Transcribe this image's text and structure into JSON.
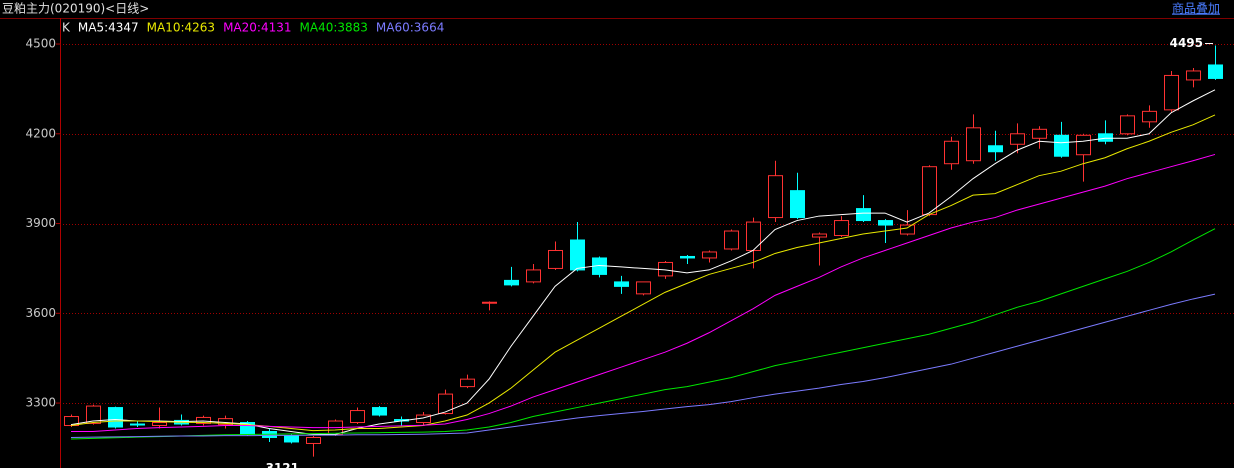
{
  "chart_data": {
    "type": "candlestick",
    "title": "豆粕主力(020190)<日线>",
    "link": "商品叠加",
    "ylim": [
      3083,
      4587
    ],
    "yticks": [
      3300,
      3600,
      3900,
      4200,
      4500
    ],
    "grid": true,
    "series": [
      {
        "name": "K",
        "up_color": "#ff3232",
        "down_color": "#00ffff",
        "open": [
          3225,
          3232,
          3285,
          3230,
          3225,
          3242,
          3232,
          3228,
          3235,
          3205,
          3190,
          3165,
          3195,
          3235,
          3285,
          3245,
          3235,
          3265,
          3355,
          3635,
          3710,
          3705,
          3750,
          3845,
          3785,
          3705,
          3665,
          3725,
          3790,
          3785,
          3815,
          3810,
          3920,
          4010,
          3855,
          3860,
          3950,
          3910,
          3865,
          3930,
          4100,
          4110,
          4160,
          4165,
          4185,
          4195,
          4130,
          4200,
          4200,
          4240,
          4280,
          4380,
          4430
        ],
        "high": [
          3262,
          3295,
          3288,
          3240,
          3285,
          3262,
          3258,
          3258,
          3240,
          3215,
          3195,
          3190,
          3245,
          3285,
          3290,
          3255,
          3270,
          3345,
          3395,
          3640,
          3755,
          3765,
          3840,
          3905,
          3790,
          3725,
          3705,
          3775,
          3795,
          3810,
          3880,
          3920,
          4110,
          4070,
          3870,
          3925,
          3995,
          3915,
          3945,
          4095,
          4190,
          4265,
          4210,
          4235,
          4225,
          4240,
          4200,
          4245,
          4265,
          4295,
          4410,
          4420,
          4495
        ],
        "low": [
          3220,
          3228,
          3215,
          3220,
          3215,
          3225,
          3225,
          3215,
          3190,
          3170,
          3165,
          3121,
          3190,
          3230,
          3255,
          3225,
          3225,
          3262,
          3350,
          3610,
          3690,
          3700,
          3745,
          3740,
          3720,
          3665,
          3660,
          3715,
          3765,
          3770,
          3810,
          3750,
          3905,
          3915,
          3760,
          3855,
          3905,
          3835,
          3860,
          3925,
          4080,
          4100,
          4110,
          4135,
          4150,
          4120,
          4040,
          4165,
          4195,
          4220,
          4270,
          4355,
          4380
        ],
        "close": [
          3255,
          3290,
          3220,
          3228,
          3235,
          3230,
          3252,
          3248,
          3195,
          3185,
          3170,
          3185,
          3240,
          3275,
          3260,
          3240,
          3260,
          3330,
          3380,
          3637,
          3695,
          3745,
          3810,
          3745,
          3730,
          3690,
          3705,
          3770,
          3785,
          3805,
          3875,
          3905,
          4060,
          3920,
          3865,
          3910,
          3910,
          3895,
          3895,
          4090,
          4175,
          4220,
          4140,
          4200,
          4215,
          4125,
          4195,
          4175,
          4260,
          4275,
          4395,
          4410,
          4385
        ]
      },
      {
        "name": "MA5:4347",
        "color": "#ffffff",
        "values": [
          3228,
          3240,
          3245,
          3240,
          3240,
          3238,
          3240,
          3235,
          3230,
          3215,
          3205,
          3195,
          3195,
          3215,
          3230,
          3240,
          3250,
          3270,
          3300,
          3380,
          3490,
          3590,
          3690,
          3750,
          3760,
          3755,
          3750,
          3745,
          3735,
          3745,
          3775,
          3810,
          3880,
          3910,
          3925,
          3930,
          3935,
          3935,
          3905,
          3935,
          3990,
          4050,
          4100,
          4145,
          4175,
          4170,
          4175,
          4185,
          4185,
          4200,
          4270,
          4310,
          4347
        ]
      },
      {
        "name": "MA10:4263",
        "color": "#e8e800",
        "values": [
          3225,
          3235,
          3240,
          3240,
          3238,
          3236,
          3235,
          3232,
          3228,
          3222,
          3215,
          3208,
          3210,
          3215,
          3215,
          3220,
          3225,
          3240,
          3260,
          3300,
          3350,
          3410,
          3470,
          3510,
          3550,
          3590,
          3630,
          3670,
          3700,
          3730,
          3750,
          3770,
          3800,
          3820,
          3835,
          3850,
          3865,
          3875,
          3885,
          3930,
          3960,
          3995,
          4000,
          4030,
          4060,
          4075,
          4100,
          4120,
          4150,
          4175,
          4205,
          4230,
          4263
        ]
      },
      {
        "name": "MA20:4131",
        "color": "#ff00ff",
        "values": [
          3205,
          3205,
          3210,
          3215,
          3218,
          3220,
          3222,
          3225,
          3225,
          3222,
          3220,
          3218,
          3218,
          3220,
          3222,
          3224,
          3226,
          3230,
          3245,
          3265,
          3290,
          3320,
          3345,
          3370,
          3395,
          3420,
          3445,
          3470,
          3500,
          3535,
          3575,
          3615,
          3660,
          3690,
          3720,
          3755,
          3785,
          3810,
          3835,
          3860,
          3885,
          3905,
          3920,
          3945,
          3965,
          3985,
          4005,
          4025,
          4050,
          4070,
          4090,
          4110,
          4131
        ]
      },
      {
        "name": "MA40:3883",
        "color": "#00e600",
        "values": [
          3180,
          3182,
          3184,
          3186,
          3188,
          3190,
          3192,
          3194,
          3195,
          3196,
          3197,
          3198,
          3199,
          3200,
          3201,
          3202,
          3203,
          3205,
          3210,
          3220,
          3235,
          3255,
          3270,
          3285,
          3300,
          3315,
          3330,
          3345,
          3355,
          3370,
          3385,
          3405,
          3425,
          3440,
          3455,
          3470,
          3485,
          3500,
          3515,
          3530,
          3550,
          3570,
          3595,
          3620,
          3640,
          3665,
          3690,
          3715,
          3740,
          3770,
          3805,
          3845,
          3883
        ]
      },
      {
        "name": "MA60:3664",
        "color": "#7b7bff",
        "values": [
          3185,
          3186,
          3187,
          3188,
          3189,
          3190,
          3190,
          3191,
          3191,
          3192,
          3192,
          3193,
          3193,
          3194,
          3194,
          3195,
          3196,
          3198,
          3200,
          3210,
          3220,
          3230,
          3240,
          3250,
          3258,
          3265,
          3272,
          3280,
          3288,
          3295,
          3305,
          3318,
          3330,
          3340,
          3350,
          3362,
          3372,
          3385,
          3400,
          3415,
          3430,
          3450,
          3470,
          3490,
          3510,
          3530,
          3550,
          3570,
          3590,
          3610,
          3630,
          3648,
          3664
        ]
      }
    ]
  }
}
